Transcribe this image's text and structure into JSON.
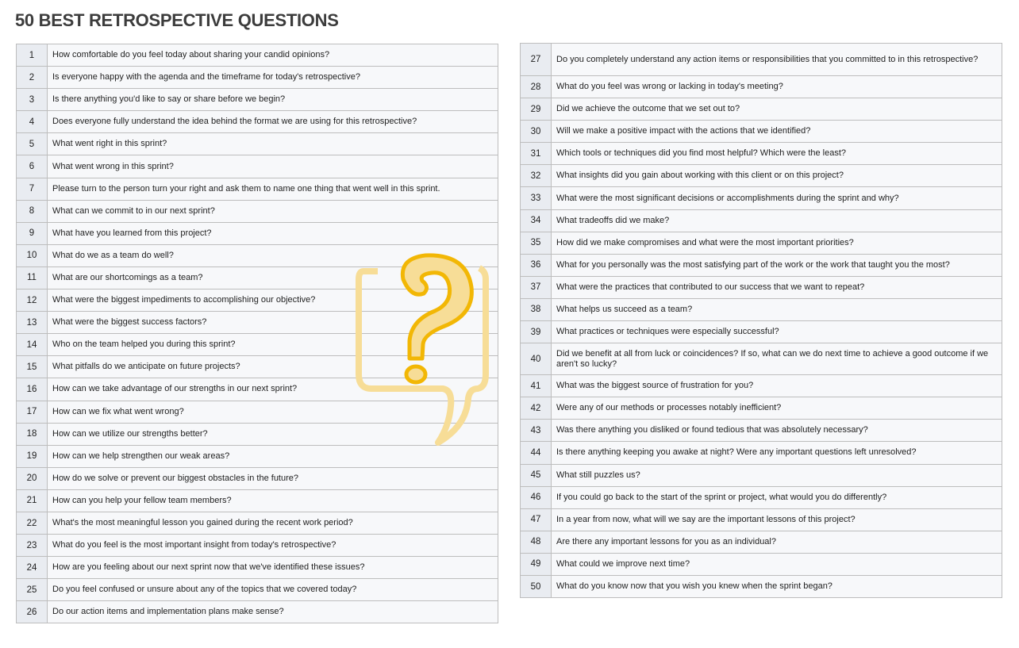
{
  "title": "50 BEST RETROSPECTIVE QUESTIONS",
  "icon": "question-mark-speech-bubble-icon",
  "colors": {
    "number_cell": "#e9ecf1",
    "question_cell": "#f7f8fa",
    "border": "#bdbdbd",
    "accent": "#f2b705",
    "accent_light": "#f7dd97"
  },
  "left_questions": [
    {
      "n": "1",
      "q": "How comfortable do you feel today about sharing your candid opinions?"
    },
    {
      "n": "2",
      "q": "Is everyone happy with the agenda and the timeframe for today's retrospective?"
    },
    {
      "n": "3",
      "q": "Is there anything you'd like to say or share before we begin?"
    },
    {
      "n": "4",
      "q": "Does everyone fully understand the idea behind the format we are using for this retrospective?"
    },
    {
      "n": "5",
      "q": "What went right in this sprint?"
    },
    {
      "n": "6",
      "q": "What went wrong in this sprint?"
    },
    {
      "n": "7",
      "q": "Please turn to the person turn your right and ask them to name one thing that went well in this sprint."
    },
    {
      "n": "8",
      "q": "What can we commit to in our next sprint?"
    },
    {
      "n": "9",
      "q": "What have you learned from this project?"
    },
    {
      "n": "10",
      "q": "What do we as a team do well?"
    },
    {
      "n": "11",
      "q": "What are our shortcomings as a team?"
    },
    {
      "n": "12",
      "q": "What were the biggest impediments to accomplishing our objective?"
    },
    {
      "n": "13",
      "q": "What were the biggest success factors?"
    },
    {
      "n": "14",
      "q": "Who on the team helped you during this sprint?"
    },
    {
      "n": "15",
      "q": "What pitfalls do we anticipate on future projects?"
    },
    {
      "n": "16",
      "q": "How can we take advantage of our strengths in our next sprint?"
    },
    {
      "n": "17",
      "q": "How can we fix what went wrong?"
    },
    {
      "n": "18",
      "q": "How can we utilize our strengths better?"
    },
    {
      "n": "19",
      "q": "How can we help strengthen our weak areas?"
    },
    {
      "n": "20",
      "q": "How do we solve or prevent our biggest obstacles in the future?"
    },
    {
      "n": "21",
      "q": "How can you help your fellow team members?"
    },
    {
      "n": "22",
      "q": "What's the most meaningful lesson you gained during the recent work period?"
    },
    {
      "n": "23",
      "q": "What do you feel is the most important insight from today's retrospective?"
    },
    {
      "n": "24",
      "q": "How are you feeling about our next sprint now that we've identified these issues?"
    },
    {
      "n": "25",
      "q": "Do you feel confused or unsure about any of the topics that we covered today?"
    },
    {
      "n": "26",
      "q": "Do our action items and implementation plans make sense?"
    }
  ],
  "right_questions": [
    {
      "n": "27",
      "q": "Do you completely understand any action items or responsibilities that you committed to in this retrospective?"
    },
    {
      "n": "28",
      "q": "What do you feel was wrong or lacking in today's meeting?"
    },
    {
      "n": "29",
      "q": "Did we achieve the outcome that we set out to?"
    },
    {
      "n": "30",
      "q": "Will we make a positive impact with the actions that we identified?"
    },
    {
      "n": "31",
      "q": "Which tools or techniques did you find most helpful? Which were the least?"
    },
    {
      "n": "32",
      "q": "What insights did you gain about working with this client or on this project?"
    },
    {
      "n": "33",
      "q": "What were the most significant decisions or accomplishments during the sprint and why?"
    },
    {
      "n": "34",
      "q": "What tradeoffs did we make?"
    },
    {
      "n": "35",
      "q": "How did we make compromises and what were the most important priorities?"
    },
    {
      "n": "36",
      "q": "What for you personally was the most satisfying part of the work or the work that taught you the most?"
    },
    {
      "n": "37",
      "q": "What were the practices that contributed to our success that we want to repeat?"
    },
    {
      "n": "38",
      "q": "What helps us succeed as a team?"
    },
    {
      "n": "39",
      "q": "What practices or techniques were especially successful?"
    },
    {
      "n": "40",
      "q": "Did we benefit at all from luck or coincidences? If so, what can we do next time to achieve a good outcome if we aren't so lucky?"
    },
    {
      "n": "41",
      "q": "What was the biggest source of frustration for you?"
    },
    {
      "n": "42",
      "q": "Were any of our methods or processes notably inefficient?"
    },
    {
      "n": "43",
      "q": "Was there anything you disliked or found tedious that was absolutely necessary?"
    },
    {
      "n": "44",
      "q": "Is there anything keeping you awake at night? Were any important questions left  unresolved?"
    },
    {
      "n": "45",
      "q": "What still puzzles us?"
    },
    {
      "n": "46",
      "q": "If you could go back to the start of the sprint or project, what would you do differently?"
    },
    {
      "n": "47",
      "q": "In a year from now, what will we say are the important lessons of this project?"
    },
    {
      "n": "48",
      "q": "Are there any important lessons for you as an individual?"
    },
    {
      "n": "49",
      "q": "What could we improve next time?"
    },
    {
      "n": "50",
      "q": "What do you know now that you wish you knew when the sprint began?"
    }
  ]
}
